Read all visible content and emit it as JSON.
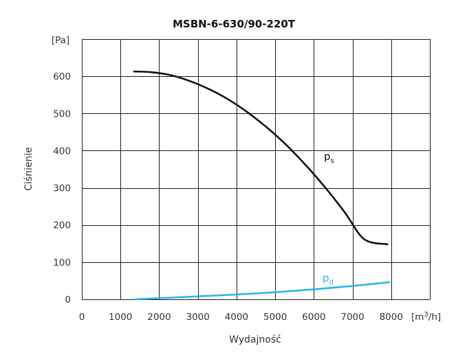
{
  "chart_data": {
    "type": "line",
    "title": "MSBN-6-630/90-220T",
    "xlabel": "Wydajność",
    "ylabel": "Ciśnienie",
    "x_unit_prefix": "[m",
    "x_unit_exp": "3",
    "x_unit_suffix": "/h]",
    "y_unit": "[Pa]",
    "xlim": [
      0,
      9000
    ],
    "ylim": [
      0,
      700
    ],
    "x_ticks": [
      0,
      1000,
      2000,
      3000,
      4000,
      5000,
      6000,
      7000,
      8000
    ],
    "x_tick_labels": [
      "0",
      "1000",
      "2000",
      "3000",
      "4000",
      "5000",
      "6000",
      "7000",
      "8000"
    ],
    "y_ticks": [
      0,
      100,
      200,
      300,
      400,
      500,
      600
    ],
    "y_tick_labels": [
      "0",
      "100",
      "200",
      "300",
      "400",
      "500",
      "600"
    ],
    "grid": true,
    "series": [
      {
        "name": "ps",
        "label_base": "p",
        "label_sub": "s",
        "color": "#111111",
        "x": [
          1350,
          1800,
          2300,
          2800,
          3300,
          3800,
          4300,
          4800,
          5300,
          5800,
          6300,
          6800,
          7300,
          7900
        ],
        "y": [
          613,
          611,
          603,
          587,
          565,
          537,
          502,
          461,
          414,
          360,
          300,
          234,
          162,
          148
        ]
      },
      {
        "name": "pd",
        "label_base": "p",
        "label_sub": "d",
        "color": "#29b6e6",
        "x": [
          1350,
          2000,
          3000,
          4000,
          5000,
          6000,
          7000,
          7950
        ],
        "y": [
          0,
          3,
          8,
          13,
          19,
          27,
          36,
          46
        ]
      }
    ]
  }
}
